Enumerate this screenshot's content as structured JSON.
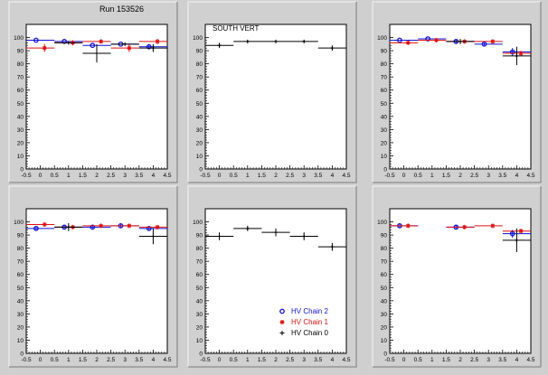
{
  "run_label": "Run 153526",
  "colors": {
    "chain2": "#1010d8",
    "chain1": "#e01010",
    "chain0": "#000000",
    "pad_bg": "#d0d0d0",
    "frame_bg": "#ffffff"
  },
  "legend": {
    "entries": [
      {
        "label": "HV Chain 2",
        "marker": "circle",
        "color": "#1010d8"
      },
      {
        "label": "HV Chain 1",
        "marker": "star",
        "color": "#e01010"
      },
      {
        "label": "HV Chain 0",
        "marker": "plus",
        "color": "#000000"
      }
    ]
  },
  "chart_data": [
    {
      "type": "scatter",
      "title": "",
      "xlim": [
        -0.5,
        4.5
      ],
      "ylim": [
        0,
        110
      ],
      "xticks": [
        -0.5,
        0,
        0.5,
        1,
        1.5,
        2,
        2.5,
        3,
        3.5,
        4,
        4.5
      ],
      "xtick_labels": [
        "-0.5",
        "0",
        "0.5",
        "1",
        "1.5",
        "2",
        "2.5",
        "3",
        "3.5",
        "4",
        "4.5"
      ],
      "yticks": [
        0,
        10,
        20,
        30,
        40,
        50,
        60,
        70,
        80,
        90,
        100
      ],
      "ytick_labels": [
        "0",
        "10",
        "20",
        "30",
        "40",
        "50",
        "60",
        "70",
        "80",
        "90",
        "100"
      ],
      "series": [
        {
          "name": "HV Chain 2",
          "x": [
            0,
            1,
            2,
            3,
            4
          ],
          "y": [
            98,
            97,
            94,
            95,
            93
          ],
          "yerr": [
            0,
            0,
            0,
            0,
            2
          ]
        },
        {
          "name": "HV Chain 1",
          "x": [
            0,
            1,
            2,
            3,
            4
          ],
          "y": [
            92,
            96,
            97,
            92,
            97
          ],
          "yerr": [
            3,
            2,
            0,
            3,
            2
          ]
        },
        {
          "name": "HV Chain 0",
          "x": [
            1,
            2,
            3,
            4
          ],
          "y": [
            96,
            88,
            95,
            92
          ],
          "yerr": [
            0,
            7,
            0,
            3
          ]
        }
      ]
    },
    {
      "type": "scatter",
      "title": "SOUTH VERT",
      "xlim": [
        -0.5,
        4.5
      ],
      "ylim": [
        0,
        110
      ],
      "xticks": [
        -0.5,
        0,
        0.5,
        1,
        1.5,
        2,
        2.5,
        3,
        3.5,
        4,
        4.5
      ],
      "xtick_labels": [
        "-0.5",
        "0",
        "0.5",
        "1",
        "1.5",
        "2",
        "2.5",
        "3",
        "3.5",
        "4",
        "4.5"
      ],
      "yticks": [
        0,
        10,
        20,
        30,
        40,
        50,
        60,
        70,
        80,
        90,
        100
      ],
      "ytick_labels": [
        "0",
        "10",
        "20",
        "30",
        "40",
        "50",
        "60",
        "70",
        "80",
        "90",
        "100"
      ],
      "series": [
        {
          "name": "HV Chain 0",
          "x": [
            0,
            1,
            2,
            3,
            4
          ],
          "y": [
            94,
            97,
            97,
            97,
            92
          ],
          "yerr": [
            2,
            1,
            1,
            1,
            2
          ]
        }
      ]
    },
    {
      "type": "scatter",
      "title": "",
      "xlim": [
        -0.5,
        4.5
      ],
      "ylim": [
        0,
        110
      ],
      "xticks": [
        -0.5,
        0,
        0.5,
        1,
        1.5,
        2,
        2.5,
        3,
        3.5,
        4,
        4.5
      ],
      "xtick_labels": [
        "-0.5",
        "0",
        "0.5",
        "1",
        "1.5",
        "2",
        "2.5",
        "3",
        "3.5",
        "4",
        "4.5"
      ],
      "yticks": [
        0,
        10,
        20,
        30,
        40,
        50,
        60,
        70,
        80,
        90,
        100
      ],
      "ytick_labels": [
        "0",
        "10",
        "20",
        "30",
        "40",
        "50",
        "60",
        "70",
        "80",
        "90",
        "100"
      ],
      "series": [
        {
          "name": "HV Chain 2",
          "x": [
            0,
            1,
            2,
            3,
            4
          ],
          "y": [
            98,
            99,
            97,
            95,
            89
          ],
          "yerr": [
            0,
            0,
            1,
            1,
            3
          ]
        },
        {
          "name": "HV Chain 1",
          "x": [
            0,
            1,
            2,
            3,
            4
          ],
          "y": [
            96,
            98,
            97,
            97,
            88
          ],
          "yerr": [
            1,
            1,
            1,
            1,
            2
          ]
        },
        {
          "name": "HV Chain 0",
          "x": [
            2,
            4
          ],
          "y": [
            97,
            86
          ],
          "yerr": [
            2,
            7
          ]
        }
      ]
    },
    {
      "type": "scatter",
      "title": "",
      "xlim": [
        -0.5,
        4.5
      ],
      "ylim": [
        0,
        110
      ],
      "xticks": [
        -0.5,
        0,
        0.5,
        1,
        1.5,
        2,
        2.5,
        3,
        3.5,
        4,
        4.5
      ],
      "xtick_labels": [
        "-0.5",
        "0",
        "0.5",
        "1",
        "1.5",
        "2",
        "2.5",
        "3",
        "3.5",
        "4",
        "4.5"
      ],
      "yticks": [
        0,
        10,
        20,
        30,
        40,
        50,
        60,
        70,
        80,
        90,
        100
      ],
      "ytick_labels": [
        "0",
        "10",
        "20",
        "30",
        "40",
        "50",
        "60",
        "70",
        "80",
        "90",
        "100"
      ],
      "series": [
        {
          "name": "HV Chain 2",
          "x": [
            0,
            1,
            2,
            3,
            4
          ],
          "y": [
            95,
            96,
            96,
            97,
            95
          ],
          "yerr": [
            1,
            1,
            1,
            1,
            1
          ]
        },
        {
          "name": "HV Chain 1",
          "x": [
            0,
            1,
            2,
            3,
            4
          ],
          "y": [
            98,
            96,
            97,
            97,
            96
          ],
          "yerr": [
            1,
            1,
            1,
            1,
            1
          ]
        },
        {
          "name": "HV Chain 0",
          "x": [
            1,
            4
          ],
          "y": [
            96,
            89
          ],
          "yerr": [
            3,
            6
          ]
        }
      ]
    },
    {
      "type": "scatter",
      "title": "",
      "xlim": [
        -0.5,
        4.5
      ],
      "ylim": [
        0,
        110
      ],
      "xticks": [
        -0.5,
        0,
        0.5,
        1,
        1.5,
        2,
        2.5,
        3,
        3.5,
        4,
        4.5
      ],
      "xtick_labels": [
        "-0.5",
        "0",
        "0.5",
        "1",
        "1.5",
        "2",
        "2.5",
        "3",
        "3.5",
        "4",
        "4.5"
      ],
      "yticks": [
        0,
        10,
        20,
        30,
        40,
        50,
        60,
        70,
        80,
        90,
        100
      ],
      "ytick_labels": [
        "0",
        "10",
        "20",
        "30",
        "40",
        "50",
        "60",
        "70",
        "80",
        "90",
        "100"
      ],
      "series": [
        {
          "name": "HV Chain 0",
          "x": [
            0,
            1,
            2,
            3,
            4
          ],
          "y": [
            89,
            95,
            92,
            89,
            81
          ],
          "yerr": [
            3,
            2,
            3,
            3,
            3
          ]
        }
      ]
    },
    {
      "type": "scatter",
      "title": "",
      "xlim": [
        -0.5,
        4.5
      ],
      "ylim": [
        0,
        110
      ],
      "xticks": [
        -0.5,
        0,
        0.5,
        1,
        1.5,
        2,
        2.5,
        3,
        3.5,
        4,
        4.5
      ],
      "xtick_labels": [
        "-0.5",
        "0",
        "0.5",
        "1",
        "1.5",
        "2",
        "2.5",
        "3",
        "3.5",
        "4",
        "4.5"
      ],
      "yticks": [
        0,
        10,
        20,
        30,
        40,
        50,
        60,
        70,
        80,
        90,
        100
      ],
      "ytick_labels": [
        "0",
        "10",
        "20",
        "30",
        "40",
        "50",
        "60",
        "70",
        "80",
        "90",
        "100"
      ],
      "series": [
        {
          "name": "HV Chain 2",
          "x": [
            0,
            2,
            4
          ],
          "y": [
            97,
            96,
            91
          ],
          "yerr": [
            1,
            1,
            3
          ]
        },
        {
          "name": "HV Chain 1",
          "x": [
            0,
            2,
            3,
            4
          ],
          "y": [
            97,
            96,
            97,
            93
          ],
          "yerr": [
            1,
            1,
            1,
            2
          ]
        },
        {
          "name": "HV Chain 0",
          "x": [
            4
          ],
          "y": [
            86
          ],
          "yerr": [
            9
          ]
        }
      ]
    }
  ]
}
